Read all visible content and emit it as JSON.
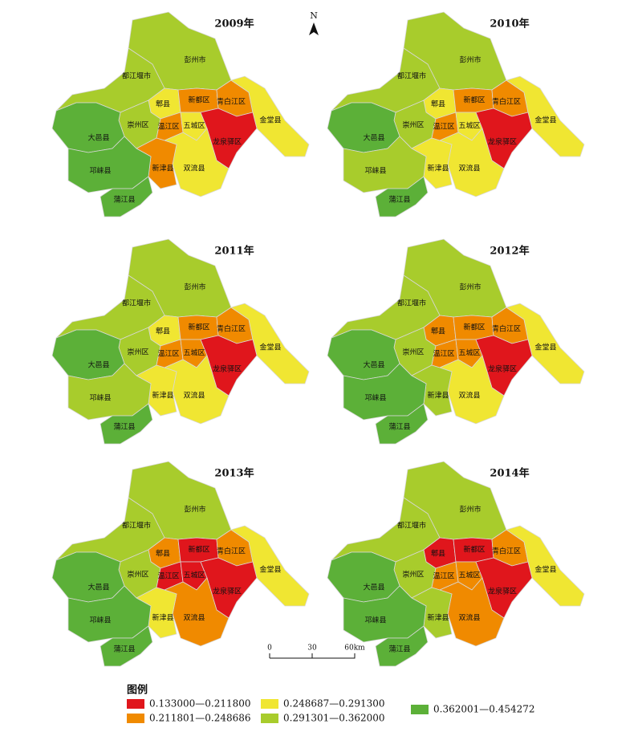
{
  "north": "N",
  "districts": [
    "彭州市",
    "都江堰市",
    "郫县",
    "新都区",
    "青白江区",
    "金堂县",
    "崇州区",
    "温江区",
    "五城区",
    "龙泉驿区",
    "双流县",
    "新津县",
    "大邑县",
    "邛崃县",
    "蒲江县"
  ],
  "panels": [
    {
      "title": "2009年",
      "classes": [
        4,
        4,
        3,
        2,
        2,
        3,
        4,
        2,
        3,
        1,
        3,
        2,
        5,
        5,
        5
      ]
    },
    {
      "title": "2010年",
      "classes": [
        4,
        4,
        3,
        2,
        2,
        3,
        4,
        2,
        3,
        1,
        3,
        3,
        5,
        4,
        5
      ]
    },
    {
      "title": "2011年",
      "classes": [
        4,
        4,
        3,
        2,
        2,
        3,
        4,
        2,
        2,
        1,
        3,
        3,
        5,
        4,
        5
      ]
    },
    {
      "title": "2012年",
      "classes": [
        4,
        4,
        2,
        2,
        2,
        3,
        4,
        2,
        2,
        1,
        3,
        4,
        5,
        5,
        5
      ]
    },
    {
      "title": "2013年",
      "classes": [
        4,
        4,
        2,
        1,
        2,
        3,
        4,
        1,
        1,
        1,
        2,
        3,
        5,
        5,
        5
      ]
    },
    {
      "title": "2014年",
      "classes": [
        4,
        4,
        1,
        1,
        2,
        3,
        4,
        2,
        2,
        1,
        2,
        4,
        5,
        5,
        5
      ]
    }
  ],
  "scale": {
    "labels": [
      "0",
      "30",
      "60km"
    ]
  },
  "legend": {
    "title": "图例",
    "items": [
      {
        "label": "0.133000—0.211800",
        "color": "#e0161c"
      },
      {
        "label": "0.211801—0.248686",
        "color": "#f08a00"
      },
      {
        "label": "0.248687—0.291300",
        "color": "#f0e632"
      },
      {
        "label": "0.291301—0.362000",
        "color": "#a8cc2c"
      },
      {
        "label": "0.362001—0.454272",
        "color": "#5cb038"
      }
    ]
  }
}
